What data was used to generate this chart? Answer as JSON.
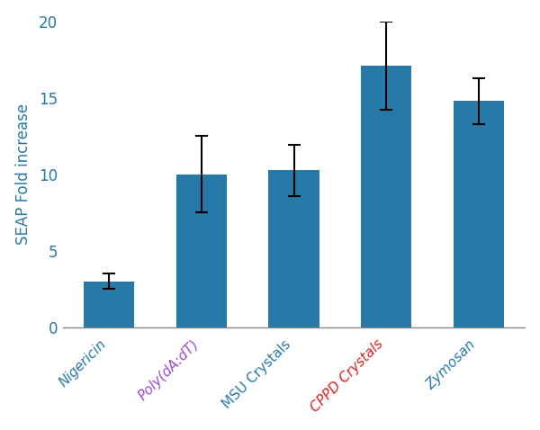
{
  "categories": [
    "Nigericin",
    "Poly(dA:dT)",
    "MSU Crystals",
    "CPPD Crystals",
    "Zymosan"
  ],
  "values": [
    3.0,
    10.0,
    10.25,
    17.1,
    14.8
  ],
  "errors": [
    0.5,
    2.5,
    1.7,
    2.9,
    1.5
  ],
  "bar_color": "#2779a7",
  "ylabel": "SEAP Fold increase",
  "ylabel_color": "#2779a7",
  "ylim": [
    0,
    20
  ],
  "yticks": [
    0,
    5,
    10,
    15,
    20
  ],
  "ytick_color": "#2779a7",
  "label_colors": [
    "#2779a7",
    "#9b4dca",
    "#2779a7",
    "#e02020",
    "#2779a7"
  ],
  "label_styles": [
    "italic",
    "italic",
    "normal",
    "italic",
    "italic"
  ],
  "error_color": "black",
  "background_color": "#ffffff",
  "bar_width": 0.55,
  "figsize": [
    6.0,
    4.78
  ],
  "dpi": 100
}
